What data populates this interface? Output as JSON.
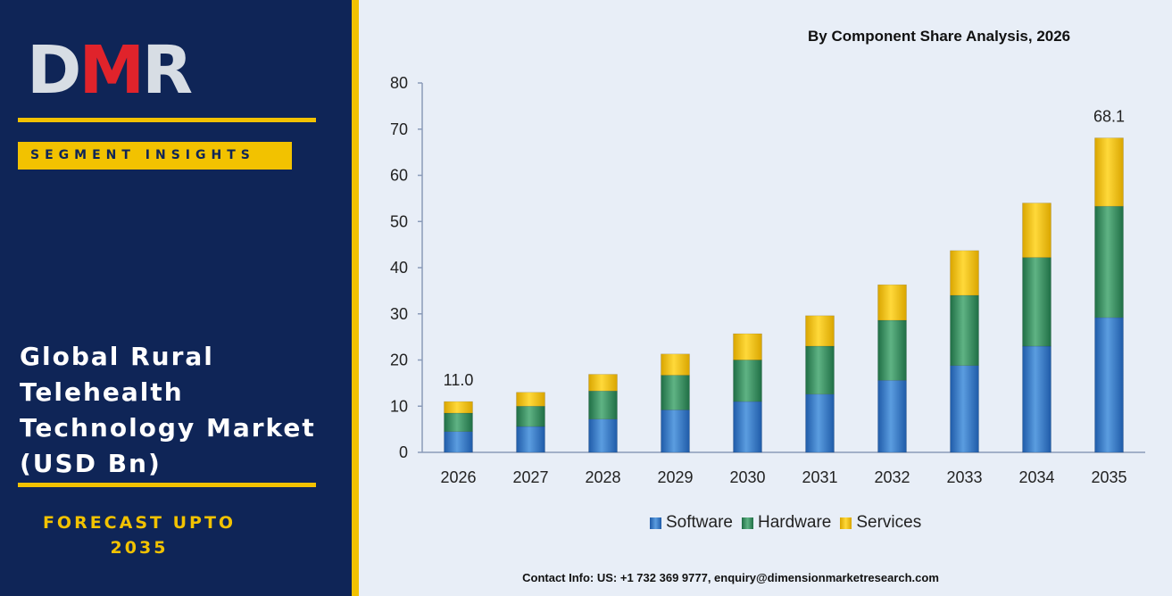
{
  "brand": {
    "logo_letters": [
      "D",
      "M",
      "R"
    ],
    "badge": "SEGMENT INSIGHTS",
    "report_title": "Global Rural Telehealth Technology Market (USD Bn)",
    "forecast": "FORECAST UPTO 2035",
    "colors": {
      "panel": "#0f2557",
      "accent": "#f2c200",
      "logo_red": "#e0232b"
    }
  },
  "chart_title": "By Component Share Analysis, 2026",
  "contact": "Contact Info: US: +1 732 369 9777, enquiry@dimensionmarketresearch.com",
  "chart_data": {
    "type": "bar",
    "stacked": true,
    "title": "By Component Share Analysis, 2026",
    "xlabel": "",
    "ylabel": "",
    "categories": [
      "2026",
      "2027",
      "2028",
      "2029",
      "2030",
      "2031",
      "2032",
      "2033",
      "2034",
      "2035"
    ],
    "ylim": [
      0,
      80
    ],
    "yticks": [
      0,
      10,
      20,
      30,
      40,
      50,
      60,
      70,
      80
    ],
    "grid": false,
    "legend_position": "bottom",
    "series": [
      {
        "name": "Software",
        "color": "#3a7cc6",
        "values": [
          4.5,
          5.6,
          7.2,
          9.2,
          11.0,
          12.6,
          15.6,
          18.8,
          23.0,
          29.2
        ]
      },
      {
        "name": "Hardware",
        "color": "#3c9466",
        "values": [
          4.0,
          4.4,
          6.1,
          7.5,
          9.0,
          10.4,
          13.0,
          15.2,
          19.2,
          24.1
        ]
      },
      {
        "name": "Services",
        "color": "#f5c400",
        "values": [
          2.5,
          3.0,
          3.6,
          4.6,
          5.7,
          6.6,
          7.7,
          9.7,
          11.8,
          14.8
        ]
      }
    ],
    "totals": [
      11.0,
      13.0,
      16.9,
      21.3,
      25.7,
      29.6,
      36.3,
      43.7,
      54.0,
      68.1
    ],
    "data_labels": [
      {
        "category": "2026",
        "text": "11.0"
      },
      {
        "category": "2035",
        "text": "68.1"
      }
    ]
  }
}
